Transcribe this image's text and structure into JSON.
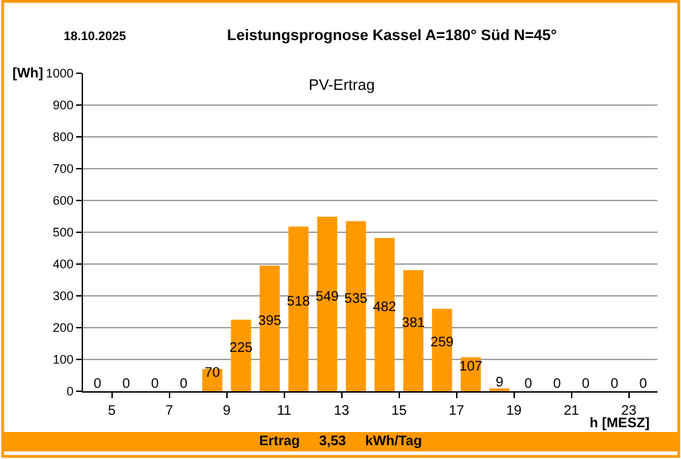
{
  "chart_data": {
    "type": "bar",
    "title": "Leistungsprognose Kassel A=180° Süd N=45°",
    "subtitle": "18.10.2025",
    "ylabel": "[Wh]",
    "xlabel": "h [MESZ]",
    "x": [
      4.5,
      5.5,
      6.5,
      7.5,
      8.5,
      9.5,
      10.5,
      11.5,
      12.5,
      13.5,
      14.5,
      15.5,
      16.5,
      17.5,
      18.5,
      19.5,
      20.5,
      21.5,
      22.5,
      23.5
    ],
    "series": [
      {
        "color": "#ff9900",
        "values": [
          0,
          0,
          0,
          0,
          70,
          225,
          395,
          518,
          549,
          535,
          482,
          381,
          259,
          107,
          9,
          0,
          0,
          0,
          0,
          0
        ]
      }
    ],
    "xlim": [
      4,
      24
    ],
    "xticks": [
      5,
      7,
      9,
      11,
      13,
      15,
      17,
      19,
      21,
      23
    ],
    "ylim": [
      0,
      1000
    ],
    "yticks": [
      0,
      100,
      200,
      300,
      400,
      500,
      600,
      700,
      800,
      900,
      1000
    ],
    "grid": "y",
    "data_labels": true,
    "annotations": [
      "PV-Ertrag",
      "Ertrag     3,53     kWh/Tag"
    ]
  }
}
